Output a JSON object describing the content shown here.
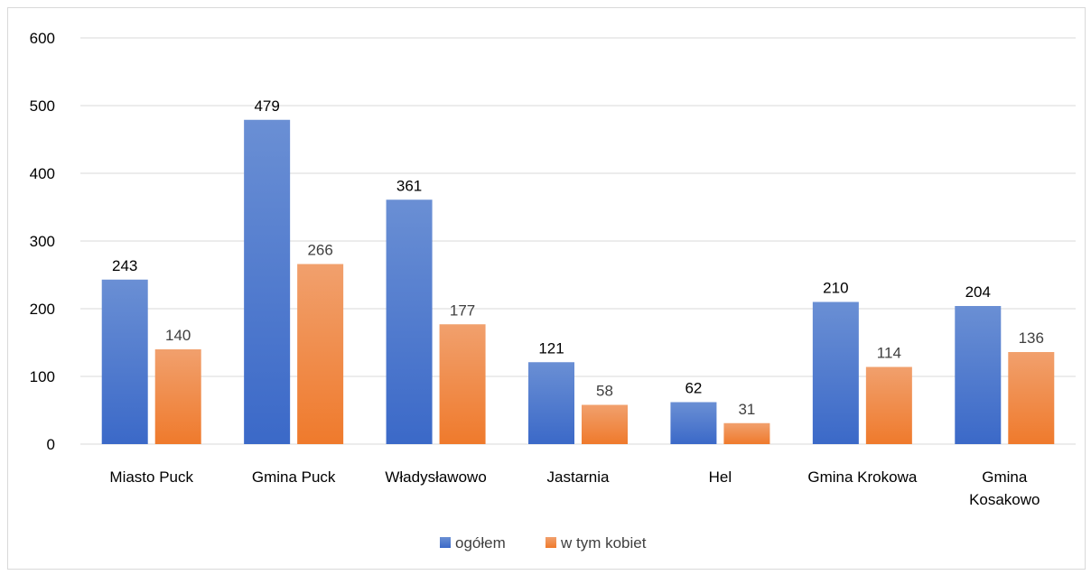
{
  "chart_data": {
    "type": "bar",
    "title": "",
    "xlabel": "",
    "ylabel": "",
    "categories": [
      [
        "Miasto Puck"
      ],
      [
        "Gmina Puck"
      ],
      [
        "Władysławowo"
      ],
      [
        "Jastarnia"
      ],
      [
        "Hel"
      ],
      [
        "Gmina Krokowa"
      ],
      [
        "Gmina",
        "Kosakowo"
      ]
    ],
    "series": [
      {
        "name": "ogółem",
        "values": [
          243,
          479,
          361,
          121,
          62,
          210,
          204
        ],
        "color": "#4472c4"
      },
      {
        "name": "w tym kobiet",
        "values": [
          140,
          266,
          177,
          58,
          31,
          114,
          136
        ],
        "color": "#ed7d31"
      }
    ],
    "ylim": [
      0,
      600
    ],
    "yticks": [
      0,
      100,
      200,
      300,
      400,
      500,
      600
    ],
    "grid": true,
    "legend_position": "bottom"
  }
}
